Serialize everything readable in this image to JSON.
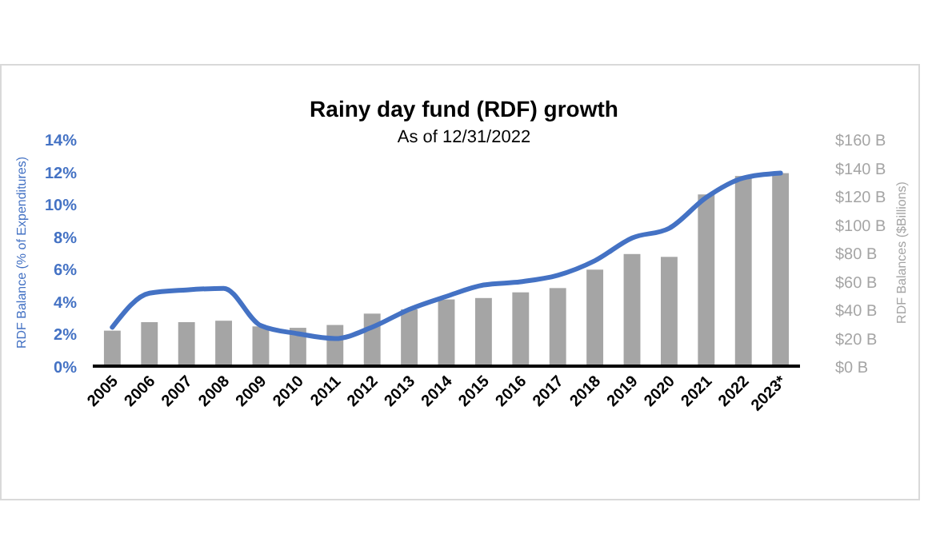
{
  "chart_data": {
    "type": "bar",
    "title": "Rainy day fund (RDF) growth",
    "subtitle": "As of 12/31/2022",
    "ylabel": "RDF Balance (% of Expenditures)",
    "y2label": "RDF Balances ($Billions)",
    "categories": [
      "2005",
      "2006",
      "2007",
      "2008",
      "2009",
      "2010",
      "2011",
      "2012",
      "2013",
      "2014",
      "2015",
      "2016",
      "2017",
      "2018",
      "2019",
      "2020",
      "2021",
      "2022",
      "2023*"
    ],
    "series": [
      {
        "axis": "y2",
        "color": "#a5a5a5",
        "values": [
          25,
          31,
          31,
          32,
          28,
          27,
          29,
          37,
          40,
          47,
          48,
          52,
          55,
          68,
          79,
          77,
          121,
          134,
          136
        ]
      },
      {
        "type": "line",
        "axis": "y",
        "color": "#4472c4",
        "values": [
          2.4,
          4.5,
          4.7,
          4.8,
          2.5,
          2.0,
          1.7,
          2.4,
          3.5,
          4.3,
          5.0,
          5.2,
          5.6,
          6.5,
          7.9,
          8.5,
          10.4,
          11.6,
          11.9
        ]
      }
    ],
    "ylim": [
      0,
      14
    ],
    "yticks": [
      {
        "value": 0,
        "label": "0%"
      },
      {
        "value": 2,
        "label": "2%"
      },
      {
        "value": 4,
        "label": "4%"
      },
      {
        "value": 6,
        "label": "6%"
      },
      {
        "value": 8,
        "label": "8%"
      },
      {
        "value": 10,
        "label": "10%"
      },
      {
        "value": 12,
        "label": "12%"
      },
      {
        "value": 14,
        "label": "14%"
      }
    ],
    "y2lim": [
      0,
      160
    ],
    "y2ticks": [
      {
        "value": 0,
        "label": "$0 B"
      },
      {
        "value": 20,
        "label": "$20 B"
      },
      {
        "value": 40,
        "label": "$40 B"
      },
      {
        "value": 60,
        "label": "$60 B"
      },
      {
        "value": 80,
        "label": "$80 B"
      },
      {
        "value": 100,
        "label": "$100 B"
      },
      {
        "value": 120,
        "label": "$120 B"
      },
      {
        "value": 140,
        "label": "$140 B"
      },
      {
        "value": 160,
        "label": "$160 B"
      }
    ],
    "grid": false
  }
}
